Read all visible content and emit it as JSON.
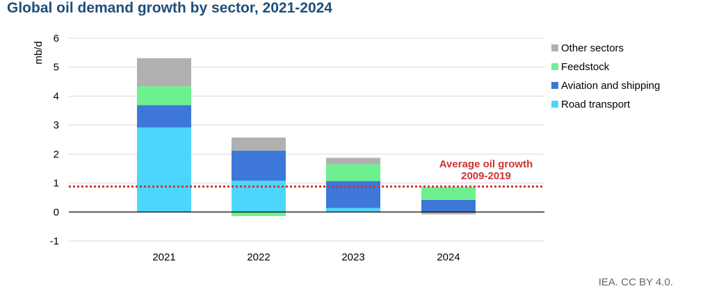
{
  "chart_data": {
    "type": "bar",
    "stacked": true,
    "title": "Global oil demand growth by sector, 2021-2024",
    "ylabel": "mb/d",
    "xlabel": "",
    "ylim": [
      -1,
      6
    ],
    "yticks": [
      6,
      5,
      4,
      3,
      2,
      1,
      0,
      -1
    ],
    "grid": true,
    "legend_position": "right",
    "categories": [
      "2021",
      "2022",
      "2023",
      "2024"
    ],
    "series": [
      {
        "name": "Road transport",
        "color": "#4dd6fc",
        "values": [
          2.92,
          1.08,
          0.14,
          0.0
        ]
      },
      {
        "name": "Aviation and shipping",
        "color": "#3d78d8",
        "values": [
          0.77,
          1.04,
          0.93,
          0.42
        ]
      },
      {
        "name": "Feedstock",
        "color": "#6df08f",
        "values": [
          0.65,
          -0.14,
          0.58,
          0.44
        ]
      },
      {
        "name": "Other sectors",
        "color": "#b0b0b0",
        "values": [
          0.97,
          0.45,
          0.22,
          -0.08
        ]
      }
    ],
    "legend_order": [
      "Other sectors",
      "Feedstock",
      "Aviation and shipping",
      "Road transport"
    ],
    "reference_line": {
      "value": 0.88,
      "label_line1": "Average oil growth",
      "label_line2": "2009-2019",
      "color": "#cc3333"
    }
  },
  "credit": "IEA. CC BY 4.0."
}
